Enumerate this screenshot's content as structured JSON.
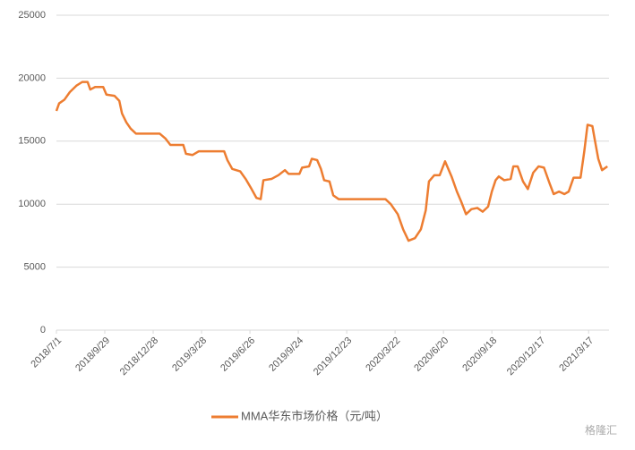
{
  "chart_data": {
    "type": "line",
    "series": [
      {
        "name": "MMA华东市场价格（元/吨）",
        "color": "#ED7D31",
        "x": [
          "2018/7/1",
          "2018/7/6",
          "2018/7/16",
          "2018/7/26",
          "2018/8/7",
          "2018/8/18",
          "2018/8/28",
          "2018/9/2",
          "2018/9/11",
          "2018/9/26",
          "2018/10/2",
          "2018/10/17",
          "2018/10/26",
          "2018/10/31",
          "2018/11/8",
          "2018/11/16",
          "2018/11/26",
          "2019/1/9",
          "2019/1/20",
          "2019/1/29",
          "2019/2/22",
          "2019/2/27",
          "2019/3/11",
          "2019/3/23",
          "2019/5/9",
          "2019/5/15",
          "2019/5/24",
          "2019/6/8",
          "2019/6/18",
          "2019/6/29",
          "2019/7/8",
          "2019/7/16",
          "2019/7/21",
          "2019/8/5",
          "2019/8/18",
          "2019/8/30",
          "2019/9/6",
          "2019/9/26",
          "2019/10/1",
          "2019/10/14",
          "2019/10/19",
          "2019/10/29",
          "2019/11/5",
          "2019/11/11",
          "2019/11/21",
          "2019/11/28",
          "2019/12/8",
          "2020/3/4",
          "2020/3/14",
          "2020/3/27",
          "2020/4/6",
          "2020/4/16",
          "2020/4/28",
          "2020/5/9",
          "2020/5/18",
          "2020/5/24",
          "2020/6/3",
          "2020/6/13",
          "2020/6/23",
          "2020/7/5",
          "2020/7/15",
          "2020/7/23",
          "2020/8/1",
          "2020/8/11",
          "2020/8/22",
          "2020/9/1",
          "2020/9/11",
          "2020/9/18",
          "2020/9/25",
          "2020/10/1",
          "2020/10/11",
          "2020/10/23",
          "2020/10/28",
          "2020/11/5",
          "2020/11/15",
          "2020/11/24",
          "2020/12/4",
          "2020/12/14",
          "2020/12/24",
          "2021/1/3",
          "2021/1/11",
          "2021/1/21",
          "2021/1/31",
          "2021/2/8",
          "2021/2/17",
          "2021/3/2",
          "2021/3/9",
          "2021/3/15",
          "2021/3/24",
          "2021/3/29",
          "2021/4/4",
          "2021/4/11",
          "2021/4/21"
        ],
        "values": [
          17400,
          18000,
          18300,
          18900,
          19400,
          19700,
          19700,
          19100,
          19300,
          19300,
          18700,
          18600,
          18200,
          17200,
          16500,
          16000,
          15600,
          15600,
          15200,
          14700,
          14700,
          14000,
          13900,
          14200,
          14200,
          13500,
          12800,
          12600,
          12000,
          11200,
          10500,
          10400,
          11900,
          12000,
          12300,
          12700,
          12400,
          12400,
          12900,
          13000,
          13600,
          13500,
          12800,
          11900,
          11800,
          10700,
          10400,
          10400,
          10000,
          9200,
          8000,
          7100,
          7300,
          8000,
          9500,
          11800,
          12300,
          12300,
          13400,
          12200,
          11000,
          10200,
          9200,
          9600,
          9700,
          9400,
          9800,
          11000,
          11900,
          12200,
          11900,
          12000,
          13000,
          13000,
          11800,
          11200,
          12500,
          13000,
          12900,
          11700,
          10800,
          11000,
          10800,
          11000,
          12100,
          12100,
          14200,
          16300,
          16200,
          15000,
          13600,
          12700,
          13000
        ]
      }
    ],
    "xlim": [
      "2018/7/1",
      "2021/4/24"
    ],
    "xticks": [
      "2018/7/1",
      "2018/9/29",
      "2018/12/28",
      "2019/3/28",
      "2019/6/26",
      "2019/9/24",
      "2019/12/23",
      "2020/3/22",
      "2020/6/20",
      "2020/9/18",
      "2020/12/17",
      "2021/3/17"
    ],
    "ylim": [
      0,
      25000
    ],
    "yticks": [
      0,
      5000,
      10000,
      15000,
      20000,
      25000
    ],
    "grid": true,
    "legend": "bottom",
    "watermark": "格隆汇"
  }
}
